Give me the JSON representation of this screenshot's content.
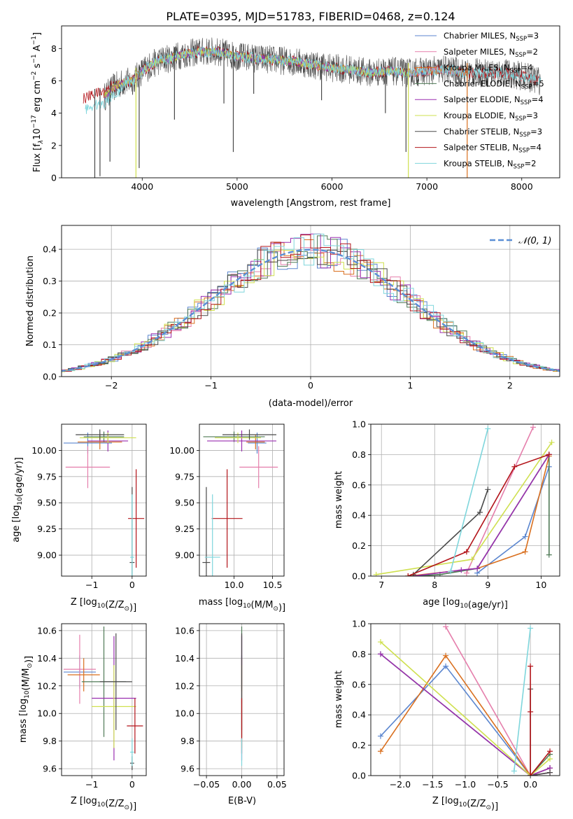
{
  "title": "PLATE=0395, MJD=51783, FIBERID=0468, z=0.124",
  "colors": {
    "chabrier_miles": "#5b86cf",
    "salpeter_miles": "#e57fac",
    "kroupa_miles": "#d96f1e",
    "chabrier_elodie": "#4f7a56",
    "salpeter_elodie": "#9a2fb0",
    "kroupa_elodie": "#cfe04f",
    "chabrier_stelib": "#4a4a4a",
    "salpeter_stelib": "#b3141a",
    "kroupa_stelib": "#7fd6dc",
    "normal_curve": "#5b8fd6",
    "grid": "#b0b0b0"
  },
  "chart_data": [
    {
      "type": "line",
      "id": "spectrum",
      "xlabel": "wavelength [Angstrom, rest frame]",
      "ylabel_parts": [
        "Flux [f",
        "λ",
        "10",
        "−17",
        " erg cm",
        "−2",
        " s",
        "−1",
        " A",
        "−1",
        "]"
      ],
      "xlim": [
        3150,
        8400
      ],
      "ylim": [
        0,
        9.4
      ],
      "xticks": [
        4000,
        5000,
        6000,
        7000,
        8000
      ],
      "yticks": [
        0,
        2,
        4,
        6,
        8
      ],
      "grid": false,
      "legend_position": "top-right",
      "legend": [
        {
          "pre": "Chabrier MILES, N",
          "sub": "SSP",
          "post": "=3",
          "color_key": "chabrier_miles"
        },
        {
          "pre": "Salpeter MILES, N",
          "sub": "SSP",
          "post": "=2",
          "color_key": "salpeter_miles"
        },
        {
          "pre": "Kroupa MILES, N",
          "sub": "SSP",
          "post": "=4",
          "color_key": "kroupa_miles"
        },
        {
          "pre": "Chabrier ELODIE, N",
          "sub": "SSP",
          "post": "=5",
          "color_key": "chabrier_elodie"
        },
        {
          "pre": "Salpeter ELODIE, N",
          "sub": "SSP",
          "post": "=4",
          "color_key": "salpeter_elodie"
        },
        {
          "pre": "Kroupa ELODIE, N",
          "sub": "SSP",
          "post": "=3",
          "color_key": "kroupa_elodie"
        },
        {
          "pre": "Chabrier STELIB, N",
          "sub": "SSP",
          "post": "=3",
          "color_key": "chabrier_stelib"
        },
        {
          "pre": "Salpeter STELIB, N",
          "sub": "SSP",
          "post": "=4",
          "color_key": "salpeter_stelib"
        },
        {
          "pre": "Kroupa STELIB, N",
          "sub": "SSP",
          "post": "=2",
          "color_key": "kroupa_stelib"
        }
      ],
      "continuum": {
        "x": [
          3380,
          3500,
          3600,
          3700,
          3800,
          3900,
          4000,
          4100,
          4200,
          4300,
          4400,
          4500,
          4600,
          4800,
          5000,
          5200,
          5400,
          5600,
          5800,
          6000,
          6200,
          6400,
          6600,
          6800,
          7000,
          7200,
          7400,
          7600,
          7800,
          8000,
          8200
        ],
        "y": [
          4.6,
          4.9,
          5.0,
          5.6,
          5.9,
          6.0,
          6.6,
          7.0,
          7.3,
          7.4,
          7.6,
          7.7,
          7.8,
          7.8,
          7.5,
          7.4,
          7.3,
          7.2,
          7.0,
          6.8,
          6.7,
          6.5,
          6.6,
          6.5,
          6.6,
          6.7,
          6.5,
          6.5,
          6.5,
          6.3,
          6.0
        ]
      },
      "absorption_lines": [
        {
          "x": 3500,
          "depth_to": 0.0,
          "series": "stelib"
        },
        {
          "x": 3555,
          "depth_to": 0.1,
          "series": "stelib"
        },
        {
          "x": 3660,
          "depth_to": 1.0,
          "series": "stelib"
        },
        {
          "x": 3934,
          "depth_to": 0.0,
          "series": "kroupa_elodie"
        },
        {
          "x": 3968,
          "depth_to": 0.6,
          "series": "stelib"
        },
        {
          "x": 4340,
          "depth_to": 3.6,
          "series": "stelib"
        },
        {
          "x": 4861,
          "depth_to": 4.6,
          "series": "stelib"
        },
        {
          "x": 4960,
          "depth_to": 1.6,
          "series": "stelib"
        },
        {
          "x": 5175,
          "depth_to": 5.2,
          "series": "stelib"
        },
        {
          "x": 5890,
          "depth_to": 4.8,
          "series": "stelib"
        },
        {
          "x": 6563,
          "depth_to": 4.0,
          "series": "stelib"
        },
        {
          "x": 6780,
          "depth_to": 1.6,
          "series": "stelib"
        },
        {
          "x": 6805,
          "depth_to": 0.0,
          "series": "kroupa_elodie"
        },
        {
          "x": 7425,
          "depth_to": 0.0,
          "series": "kroupa_miles"
        }
      ]
    },
    {
      "type": "area",
      "id": "residual_histogram",
      "xlabel": "(data-model)/error",
      "ylabel": "Normed distribution",
      "xlim": [
        -2.5,
        2.5
      ],
      "ylim": [
        0,
        0.475
      ],
      "xticks": [
        -2,
        -1,
        0,
        1,
        2
      ],
      "yticks": [
        0.0,
        0.1,
        0.2,
        0.3,
        0.4
      ],
      "grid": true,
      "bin_width": 0.1,
      "legend_position": "top-right",
      "legend": [
        {
          "label": "N(0,1)",
          "color_key": "normal_curve"
        }
      ],
      "reference_curve": {
        "name": "N(0,1)",
        "mean": 0,
        "sigma": 1
      }
    },
    {
      "type": "scatter",
      "id": "age_vs_Z",
      "xlabel": "Z [log10(Z/Z⊙)]",
      "ylabel": "age [log10(age/yr)]",
      "xlim": [
        -1.75,
        0.35
      ],
      "ylim": [
        8.8,
        10.25
      ],
      "xticks": [
        -1,
        0
      ],
      "yticks": [
        9.0,
        9.25,
        9.5,
        9.75,
        10.0
      ],
      "grid": true,
      "error_bars": [
        {
          "color_key": "chabrier_miles",
          "x": -1.1,
          "xerr": 0.6,
          "y": 10.07,
          "yerr": 0.1
        },
        {
          "color_key": "salpeter_miles",
          "x": -1.1,
          "xerr": 0.55,
          "y": 9.84,
          "yerr": 0.2
        },
        {
          "color_key": "kroupa_miles",
          "x": -0.8,
          "xerr": 0.55,
          "y": 10.08,
          "yerr": 0.07
        },
        {
          "color_key": "chabrier_elodie",
          "x": -0.7,
          "xerr": 0.5,
          "y": 10.13,
          "yerr": 0.05
        },
        {
          "color_key": "salpeter_elodie",
          "x": -0.6,
          "xerr": 0.5,
          "y": 10.09,
          "yerr": 0.1
        },
        {
          "color_key": "kroupa_elodie",
          "x": -0.6,
          "xerr": 0.7,
          "y": 10.12,
          "yerr": 0.05
        },
        {
          "color_key": "chabrier_stelib",
          "x": -0.8,
          "xerr": 0.6,
          "y": 10.15,
          "yerr": 0.05
        },
        {
          "color_key": "chabrier_stelib",
          "x": 0.0,
          "xerr": 0.06,
          "y": 8.93,
          "yerr": 0.72
        },
        {
          "color_key": "salpeter_stelib",
          "x": 0.1,
          "xerr": 0.2,
          "y": 9.35,
          "yerr": 0.47
        },
        {
          "color_key": "kroupa_stelib",
          "x": 0.0,
          "xerr": 0.05,
          "y": 8.98,
          "yerr": 0.6
        }
      ]
    },
    {
      "type": "scatter",
      "id": "age_vs_mass",
      "xlabel": "mass [log10(M/M⊙)]",
      "ylabel": "",
      "xlim": [
        9.55,
        10.65
      ],
      "ylim": [
        8.8,
        10.25
      ],
      "xticks": [
        10.0,
        10.5
      ],
      "yticks": [
        9.0,
        9.25,
        9.5,
        9.75,
        10.0
      ],
      "grid": true,
      "error_bars": [
        {
          "color_key": "chabrier_miles",
          "x": 10.3,
          "xerr": 0.12,
          "y": 10.07,
          "yerr": 0.1
        },
        {
          "color_key": "salpeter_miles",
          "x": 10.32,
          "xerr": 0.25,
          "y": 9.84,
          "yerr": 0.2
        },
        {
          "color_key": "kroupa_miles",
          "x": 10.28,
          "xerr": 0.12,
          "y": 10.08,
          "yerr": 0.07
        },
        {
          "color_key": "chabrier_elodie",
          "x": 10.0,
          "xerr": 0.4,
          "y": 10.13,
          "yerr": 0.05
        },
        {
          "color_key": "salpeter_elodie",
          "x": 10.1,
          "xerr": 0.45,
          "y": 10.09,
          "yerr": 0.1
        },
        {
          "color_key": "kroupa_elodie",
          "x": 10.05,
          "xerr": 0.3,
          "y": 10.12,
          "yerr": 0.05
        },
        {
          "color_key": "chabrier_stelib",
          "x": 10.2,
          "xerr": 0.35,
          "y": 10.15,
          "yerr": 0.05
        },
        {
          "color_key": "chabrier_stelib",
          "x": 9.64,
          "xerr": 0.05,
          "y": 8.93,
          "yerr": 0.72
        },
        {
          "color_key": "salpeter_stelib",
          "x": 9.91,
          "xerr": 0.2,
          "y": 9.35,
          "yerr": 0.47
        },
        {
          "color_key": "kroupa_stelib",
          "x": 9.72,
          "xerr": 0.1,
          "y": 8.98,
          "yerr": 0.6
        }
      ]
    },
    {
      "type": "line",
      "id": "massweight_vs_age",
      "xlabel": "age [log10(age/yr)]",
      "ylabel": "mass weight",
      "xlim": [
        6.8,
        10.35
      ],
      "ylim": [
        0,
        1.0
      ],
      "xticks": [
        7,
        8,
        9,
        10
      ],
      "yticks": [
        0.0,
        0.2,
        0.4,
        0.6,
        0.8,
        1.0
      ],
      "grid": true,
      "series": [
        {
          "color_key": "chabrier_miles",
          "x": [
            8.8,
            9.7,
            10.15
          ],
          "y": [
            0.02,
            0.26,
            0.72
          ]
        },
        {
          "color_key": "salpeter_miles",
          "x": [
            8.6,
            9.85
          ],
          "y": [
            0.02,
            0.98
          ]
        },
        {
          "color_key": "kroupa_miles",
          "x": [
            7.5,
            8.8,
            9.7,
            10.15
          ],
          "y": [
            0.0,
            0.05,
            0.16,
            0.79
          ]
        },
        {
          "color_key": "chabrier_elodie",
          "x": [
            7.6,
            8.1,
            8.8,
            10.15,
            10.15
          ],
          "y": [
            0.0,
            0.01,
            0.05,
            0.8,
            0.14
          ]
        },
        {
          "color_key": "salpeter_elodie",
          "x": [
            7.6,
            8.5,
            8.8,
            10.15
          ],
          "y": [
            0.0,
            0.04,
            0.05,
            0.8
          ]
        },
        {
          "color_key": "kroupa_elodie",
          "x": [
            6.9,
            8.7,
            10.2
          ],
          "y": [
            0.01,
            0.11,
            0.88
          ]
        },
        {
          "color_key": "chabrier_stelib",
          "x": [
            7.6,
            8.85,
            9.0
          ],
          "y": [
            0.01,
            0.42,
            0.57
          ]
        },
        {
          "color_key": "salpeter_stelib",
          "x": [
            7.5,
            8.6,
            9.5,
            10.15
          ],
          "y": [
            0.0,
            0.16,
            0.72,
            0.8
          ]
        },
        {
          "color_key": "kroupa_stelib",
          "x": [
            8.3,
            9.0
          ],
          "y": [
            0.03,
            0.97
          ]
        }
      ]
    },
    {
      "type": "scatter",
      "id": "mass_vs_Z",
      "xlabel": "Z [log10(Z/Z⊙)]",
      "ylabel": "mass [log10(M/M⊙)]",
      "xlim": [
        -1.75,
        0.35
      ],
      "ylim": [
        9.55,
        10.65
      ],
      "xticks": [
        -1,
        0
      ],
      "yticks": [
        9.6,
        9.8,
        10.0,
        10.2,
        10.4,
        10.6
      ],
      "grid": true,
      "error_bars": [
        {
          "color_key": "chabrier_miles",
          "x": -1.3,
          "xerr": 0.4,
          "y": 10.3,
          "yerr": 0.12
        },
        {
          "color_key": "salpeter_miles",
          "x": -1.3,
          "xerr": 0.4,
          "y": 10.32,
          "yerr": 0.25
        },
        {
          "color_key": "kroupa_miles",
          "x": -1.2,
          "xerr": 0.4,
          "y": 10.28,
          "yerr": 0.12
        },
        {
          "color_key": "chabrier_elodie",
          "x": -0.7,
          "xerr": 0.55,
          "y": 10.23,
          "yerr": 0.4
        },
        {
          "color_key": "salpeter_elodie",
          "x": -0.45,
          "xerr": 0.55,
          "y": 10.11,
          "yerr": 0.45
        },
        {
          "color_key": "kroupa_elodie",
          "x": -0.45,
          "xerr": 0.55,
          "y": 10.05,
          "yerr": 0.3
        },
        {
          "color_key": "chabrier_stelib",
          "x": -0.4,
          "xerr": 0.4,
          "y": 10.23,
          "yerr": 0.35
        },
        {
          "color_key": "chabrier_stelib",
          "x": 0.0,
          "xerr": 0.05,
          "y": 9.64,
          "yerr": 0.05
        },
        {
          "color_key": "salpeter_stelib",
          "x": 0.07,
          "xerr": 0.2,
          "y": 9.91,
          "yerr": 0.2
        },
        {
          "color_key": "kroupa_stelib",
          "x": 0.0,
          "xerr": 0.05,
          "y": 9.72,
          "yerr": 0.1
        }
      ]
    },
    {
      "type": "scatter",
      "id": "mass_vs_ebv",
      "xlabel": "E(B-V)",
      "ylabel": "",
      "xlim": [
        -0.06,
        0.06
      ],
      "ylim": [
        9.55,
        10.65
      ],
      "xticks": [
        -0.05,
        0.0,
        0.05
      ],
      "xtick_labels": [
        "−0.05",
        "0.00",
        "0.05"
      ],
      "yticks": [
        9.6,
        9.8,
        10.0,
        10.2,
        10.4,
        10.6
      ],
      "grid": true,
      "error_bars": [
        {
          "color_key": "chabrier_miles",
          "x": 0.0,
          "xerr": 0,
          "y": 10.3,
          "yerr": 0.12
        },
        {
          "color_key": "salpeter_miles",
          "x": 0.0,
          "xerr": 0,
          "y": 10.32,
          "yerr": 0.25
        },
        {
          "color_key": "kroupa_miles",
          "x": 0.0,
          "xerr": 0,
          "y": 10.28,
          "yerr": 0.12
        },
        {
          "color_key": "chabrier_elodie",
          "x": 0.0,
          "xerr": 0,
          "y": 10.23,
          "yerr": 0.4
        },
        {
          "color_key": "salpeter_elodie",
          "x": 0.0,
          "xerr": 0,
          "y": 10.11,
          "yerr": 0.45
        },
        {
          "color_key": "kroupa_elodie",
          "x": 0.0,
          "xerr": 0,
          "y": 10.05,
          "yerr": 0.3
        },
        {
          "color_key": "chabrier_stelib",
          "x": 0.0,
          "xerr": 0,
          "y": 10.23,
          "yerr": 0.35
        },
        {
          "color_key": "salpeter_stelib",
          "x": 0.0,
          "xerr": 0,
          "y": 9.91,
          "yerr": 0.2
        },
        {
          "color_key": "kroupa_stelib",
          "x": 0.0,
          "xerr": 0,
          "y": 9.72,
          "yerr": 0.1
        }
      ]
    },
    {
      "type": "line",
      "id": "massweight_vs_Z",
      "xlabel": "Z [log10(Z/Z⊙)]",
      "ylabel": "mass weight",
      "xlim": [
        -2.45,
        0.45
      ],
      "ylim": [
        0,
        1.0
      ],
      "xticks": [
        -2.0,
        -1.5,
        -1.0,
        -0.5,
        0.0
      ],
      "xtick_labels": [
        "−2.0",
        "−1.5",
        "−1.0",
        "−0.5",
        "0.0"
      ],
      "yticks": [
        0.0,
        0.2,
        0.4,
        0.6,
        0.8,
        1.0
      ],
      "grid": true,
      "series": [
        {
          "color_key": "chabrier_miles",
          "x": [
            -2.3,
            -1.3,
            0.0,
            0.3
          ],
          "y": [
            0.26,
            0.72,
            0.0,
            0.05
          ]
        },
        {
          "color_key": "salpeter_miles",
          "x": [
            -1.3,
            0.0,
            0.3
          ],
          "y": [
            0.98,
            0.0,
            0.02
          ]
        },
        {
          "color_key": "kroupa_miles",
          "x": [
            -2.3,
            -1.3,
            0.0,
            0.3
          ],
          "y": [
            0.16,
            0.79,
            0.0,
            0.05
          ]
        },
        {
          "color_key": "chabrier_elodie",
          "x": [
            -2.3,
            0.0,
            0.3
          ],
          "y": [
            0.8,
            0.0,
            0.14
          ]
        },
        {
          "color_key": "salpeter_elodie",
          "x": [
            -2.3,
            0.0,
            0.3
          ],
          "y": [
            0.8,
            0.0,
            0.05
          ]
        },
        {
          "color_key": "kroupa_elodie",
          "x": [
            -2.3,
            0.0,
            0.3
          ],
          "y": [
            0.88,
            0.0,
            0.11
          ]
        },
        {
          "color_key": "chabrier_stelib",
          "x": [
            0.0,
            0.0,
            0.3
          ],
          "y": [
            0.57,
            0.0,
            0.02
          ]
        },
        {
          "color_key": "salpeter_stelib",
          "x": [
            0.0,
            0.0,
            0.0,
            0.3
          ],
          "y": [
            0.72,
            0.42,
            0.0,
            0.16
          ]
        },
        {
          "color_key": "kroupa_stelib",
          "x": [
            -0.25,
            0.0
          ],
          "y": [
            0.03,
            0.97
          ]
        }
      ]
    }
  ]
}
